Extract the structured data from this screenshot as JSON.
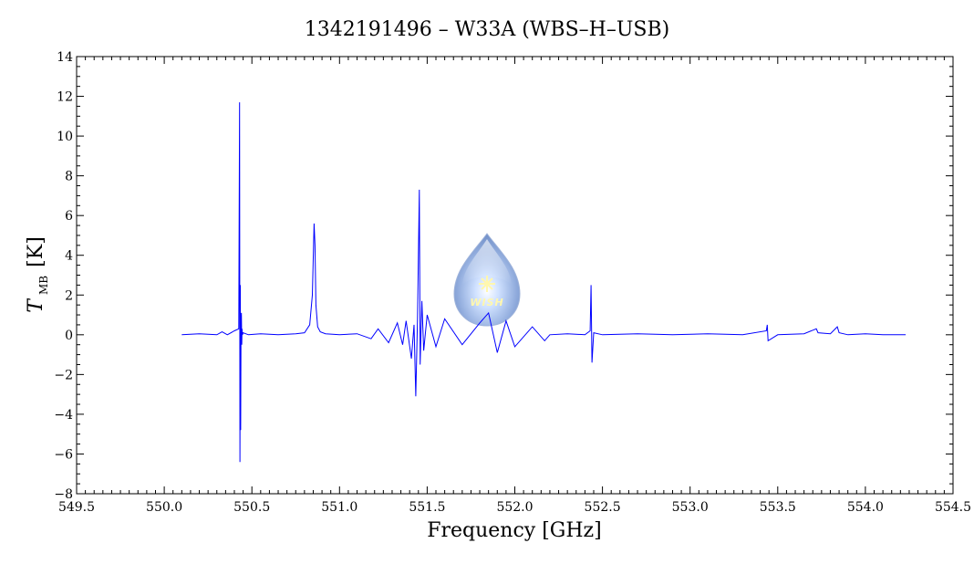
{
  "chart_data": {
    "type": "line",
    "title": "1342191496 – W33A (WBS–H–USB)",
    "xlabel": "Frequency [GHz]",
    "ylabel_main": "T",
    "ylabel_sub": "MB",
    "ylabel_unit": "[K]",
    "xlim": [
      549.5,
      554.5
    ],
    "ylim": [
      -8,
      14
    ],
    "x_ticks": [
      "549.5",
      "550.0",
      "550.5",
      "551.0",
      "551.5",
      "552.0",
      "552.5",
      "553.0",
      "553.5",
      "554.0",
      "554.5"
    ],
    "y_ticks": [
      "−8",
      "−6",
      "−4",
      "−2",
      "0",
      "2",
      "4",
      "6",
      "8",
      "10",
      "12",
      "14"
    ],
    "grid": false,
    "series_color": "#0000ff",
    "logo_text": "WISH",
    "series": [
      {
        "x": [
          550.1,
          550.2,
          550.3,
          550.33,
          550.36,
          550.4,
          550.425,
          550.43,
          550.432,
          550.434,
          550.436,
          550.438,
          550.44,
          550.442,
          550.444,
          550.446,
          550.45,
          550.48,
          550.55,
          550.65,
          550.75,
          550.8,
          550.83,
          550.845,
          550.855,
          550.86,
          550.865,
          550.875,
          550.89,
          550.92,
          551.0,
          551.1,
          551.18,
          551.22,
          551.28,
          551.33,
          551.36,
          551.38,
          551.41,
          551.425,
          551.435,
          551.445,
          551.455,
          551.46,
          551.47,
          551.48,
          551.5,
          551.55,
          551.6,
          551.7,
          551.8,
          551.85,
          551.9,
          551.95,
          552.0,
          552.1,
          552.17,
          552.2,
          552.3,
          552.4,
          552.43,
          552.435,
          552.44,
          552.45,
          552.5,
          552.7,
          552.9,
          553.1,
          553.3,
          553.435,
          553.44,
          553.445,
          553.5,
          553.65,
          553.72,
          553.73,
          553.8,
          553.84,
          553.85,
          553.9,
          554.0,
          554.1,
          554.23
        ],
        "y": [
          0.0,
          0.05,
          0.0,
          0.15,
          0.0,
          0.2,
          0.3,
          11.7,
          -6.4,
          2.5,
          -4.8,
          0.6,
          1.1,
          -0.5,
          0.3,
          0.0,
          0.1,
          0.0,
          0.05,
          0.0,
          0.05,
          0.1,
          0.5,
          2.0,
          5.6,
          4.5,
          1.5,
          0.4,
          0.15,
          0.05,
          0.0,
          0.05,
          -0.2,
          0.3,
          -0.4,
          0.6,
          -0.5,
          0.7,
          -1.2,
          0.5,
          -3.1,
          0.8,
          7.3,
          -1.5,
          1.7,
          -0.8,
          1.0,
          -0.6,
          0.8,
          -0.5,
          0.6,
          1.1,
          -0.9,
          0.7,
          -0.6,
          0.4,
          -0.3,
          0.0,
          0.05,
          0.0,
          0.2,
          2.5,
          -1.4,
          0.1,
          0.0,
          0.05,
          0.0,
          0.05,
          0.0,
          0.2,
          0.5,
          -0.3,
          0.0,
          0.05,
          0.3,
          0.1,
          0.05,
          0.4,
          0.1,
          0.0,
          0.05,
          0.0,
          0.0
        ]
      }
    ]
  }
}
